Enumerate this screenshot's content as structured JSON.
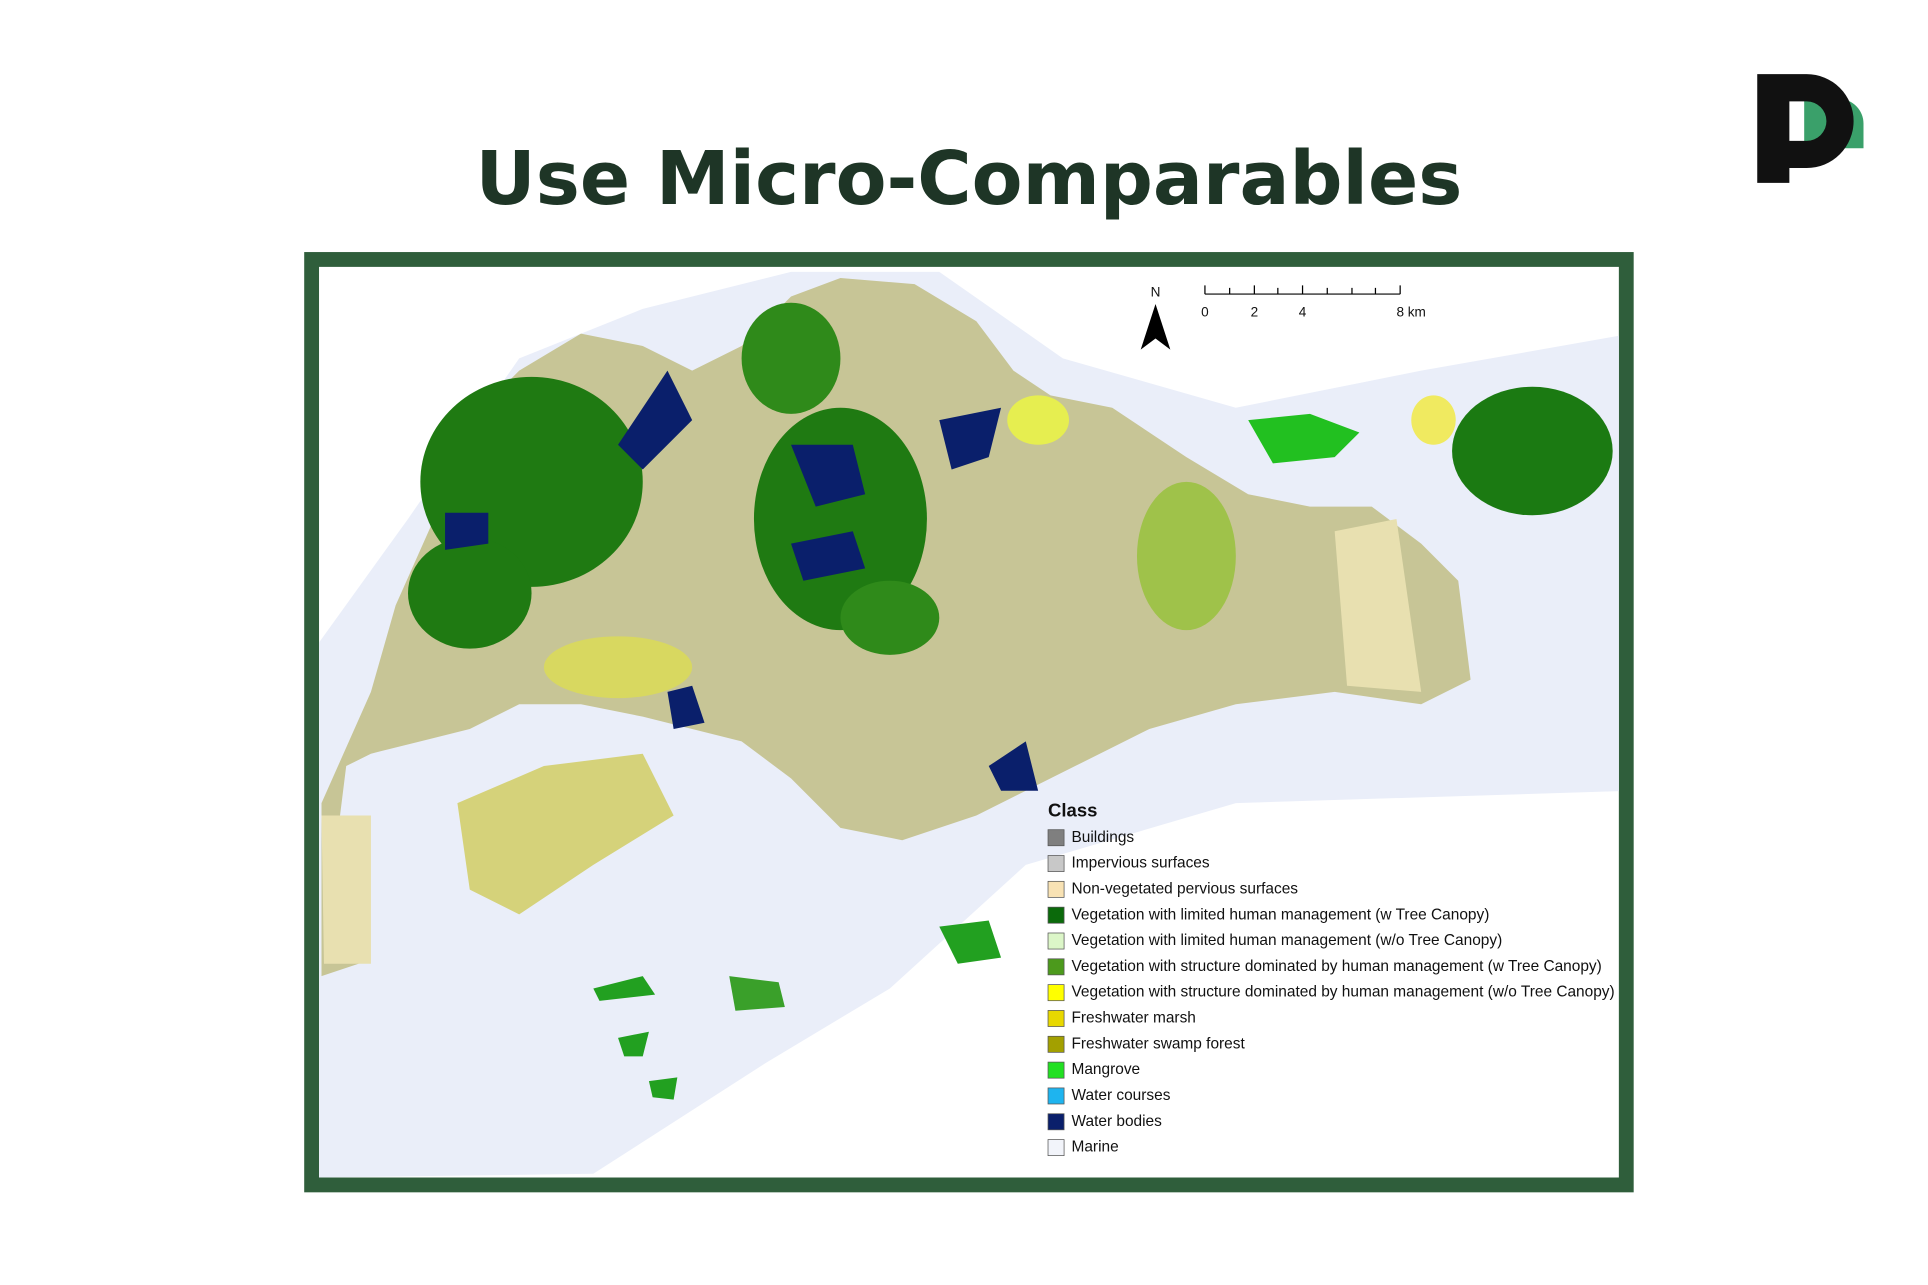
{
  "title": "Use Micro-Comparables",
  "map": {
    "north_label": "N",
    "scale_bar": {
      "labels": [
        "0",
        "2",
        "4",
        "8 km"
      ]
    },
    "legend": {
      "title": "Class",
      "items": [
        {
          "label": "Buildings",
          "color": "#7f7f7f"
        },
        {
          "label": "Impervious surfaces",
          "color": "#c8c8c8"
        },
        {
          "label": "Non-vegetated pervious surfaces",
          "color": "#f8e2b4"
        },
        {
          "label": "Vegetation with limited human management (w Tree Canopy)",
          "color": "#0b6a0b"
        },
        {
          "label": "Vegetation with limited human management (w/o Tree Canopy)",
          "color": "#dcf6c8"
        },
        {
          "label": "Vegetation with structure dominated by human management (w Tree Canopy)",
          "color": "#4c9a1c"
        },
        {
          "label": "Vegetation with structure dominated by human management (w/o Tree Canopy)",
          "color": "#ffff00"
        },
        {
          "label": "Freshwater marsh",
          "color": "#e8d800"
        },
        {
          "label": "Freshwater swamp forest",
          "color": "#a3a000"
        },
        {
          "label": "Mangrove",
          "color": "#22e022"
        },
        {
          "label": "Water courses",
          "color": "#1eb4ef"
        },
        {
          "label": "Water bodies",
          "color": "#0a1f6b"
        },
        {
          "label": "Marine",
          "color": "#f2f4fa"
        }
      ]
    }
  }
}
